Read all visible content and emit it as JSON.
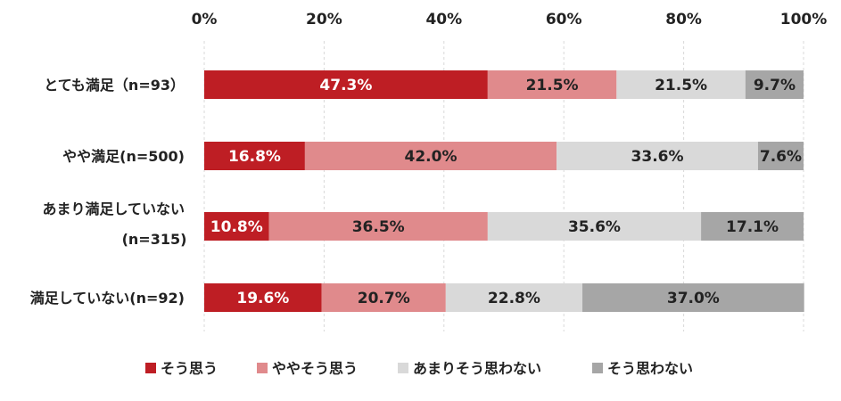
{
  "chart_data": {
    "type": "bar",
    "orientation": "horizontal",
    "stacked": "percent",
    "categories": [
      [
        "とても満足（n=93）"
      ],
      [
        "やや満足(n=500)"
      ],
      [
        "あまり満足していない",
        "(n=315)"
      ],
      [
        "満足していない(n=92)"
      ]
    ],
    "series": [
      {
        "name": "そう思う",
        "color": "#be1e24",
        "label_color": "#ffffff",
        "values": [
          47.3,
          16.8,
          10.8,
          19.6
        ],
        "labels": [
          "47.3%",
          "16.8%",
          "10.8%",
          "19.6%"
        ]
      },
      {
        "name": "ややそう思う",
        "color": "#e08a8c",
        "label_color": "#222222",
        "values": [
          21.5,
          42.0,
          36.5,
          20.7
        ],
        "labels": [
          "21.5%",
          "42.0%",
          "36.5%",
          "20.7%"
        ]
      },
      {
        "name": "あまりそう思わない",
        "color": "#d9d9d9",
        "label_color": "#222222",
        "values": [
          21.5,
          33.6,
          35.6,
          22.8
        ],
        "labels": [
          "21.5%",
          "33.6%",
          "35.6%",
          "22.8%"
        ]
      },
      {
        "name": "そう思わない",
        "color": "#a6a6a6",
        "label_color": "#222222",
        "values": [
          9.7,
          7.6,
          17.1,
          37.0
        ],
        "labels": [
          "9.7%",
          "7.6%",
          "17.1%",
          "37.0%"
        ]
      }
    ],
    "x_ticks": [
      "0%",
      "20%",
      "40%",
      "60%",
      "80%",
      "100%"
    ],
    "xlim": [
      0,
      100
    ],
    "grid": "vertical dashed",
    "axis_position": "top",
    "legend_position": "bottom"
  }
}
